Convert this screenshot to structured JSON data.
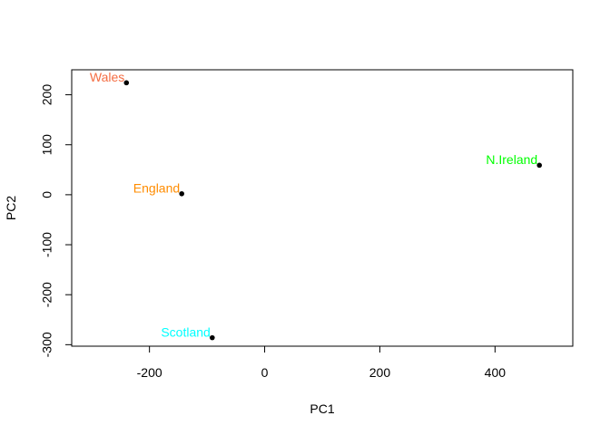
{
  "chart_data": {
    "type": "scatter",
    "xlabel": "PC1",
    "ylabel": "PC2",
    "xlim": [
      -335,
      535
    ],
    "ylim": [
      -303,
      250
    ],
    "x_ticks": [
      -200,
      0,
      200,
      400
    ],
    "y_ticks": [
      -300,
      -200,
      -100,
      0,
      100,
      200
    ],
    "grid": false,
    "points": [
      {
        "label": "England",
        "x": -144,
        "y": 2,
        "color": "#ff8c00"
      },
      {
        "label": "Wales",
        "x": -240,
        "y": 224,
        "color": "#f46d43"
      },
      {
        "label": "Scotland",
        "x": -91,
        "y": -286,
        "color": "#00ffff"
      },
      {
        "label": "N.Ireland",
        "x": 477,
        "y": 59,
        "color": "#00ff00"
      }
    ],
    "point_color": "#000000"
  }
}
